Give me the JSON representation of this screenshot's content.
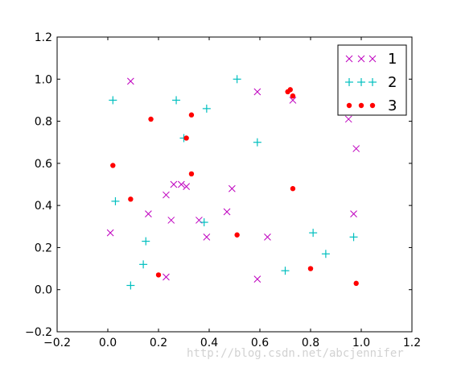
{
  "chart_data": {
    "type": "scatter",
    "title": "",
    "xlabel": "",
    "ylabel": "",
    "xlim": [
      -0.2,
      1.2
    ],
    "ylim": [
      -0.2,
      1.2
    ],
    "x_ticks": [
      "−0.2",
      "0.0",
      "0.2",
      "0.4",
      "0.6",
      "0.8",
      "1.0",
      "1.2"
    ],
    "y_ticks": [
      "−0.2",
      "0.0",
      "0.2",
      "0.4",
      "0.6",
      "0.8",
      "1.0",
      "1.2"
    ],
    "grid": false,
    "legend_position": "top-right",
    "series": [
      {
        "name": "1",
        "marker": "x",
        "color": "#bf00bf",
        "points": [
          [
            0.09,
            0.99
          ],
          [
            0.59,
            0.94
          ],
          [
            0.73,
            0.9
          ],
          [
            0.95,
            0.81
          ],
          [
            0.98,
            0.67
          ],
          [
            0.26,
            0.5
          ],
          [
            0.29,
            0.5
          ],
          [
            0.31,
            0.49
          ],
          [
            0.49,
            0.48
          ],
          [
            0.23,
            0.45
          ],
          [
            0.47,
            0.37
          ],
          [
            0.16,
            0.36
          ],
          [
            0.97,
            0.36
          ],
          [
            0.36,
            0.33
          ],
          [
            0.25,
            0.33
          ],
          [
            0.01,
            0.27
          ],
          [
            0.39,
            0.25
          ],
          [
            0.63,
            0.25
          ],
          [
            0.23,
            0.06
          ],
          [
            0.59,
            0.05
          ]
        ]
      },
      {
        "name": "2",
        "marker": "+",
        "color": "#00bfbf",
        "points": [
          [
            0.51,
            1.0
          ],
          [
            0.02,
            0.9
          ],
          [
            0.27,
            0.9
          ],
          [
            0.39,
            0.86
          ],
          [
            0.3,
            0.72
          ],
          [
            0.59,
            0.7
          ],
          [
            0.03,
            0.42
          ],
          [
            0.38,
            0.32
          ],
          [
            0.81,
            0.27
          ],
          [
            0.97,
            0.25
          ],
          [
            0.15,
            0.23
          ],
          [
            0.86,
            0.17
          ],
          [
            0.14,
            0.12
          ],
          [
            0.7,
            0.09
          ],
          [
            0.09,
            0.02
          ]
        ]
      },
      {
        "name": "3",
        "marker": "o",
        "color": "#ff0000",
        "points": [
          [
            0.71,
            0.94
          ],
          [
            0.72,
            0.95
          ],
          [
            0.73,
            0.92
          ],
          [
            0.33,
            0.83
          ],
          [
            0.17,
            0.81
          ],
          [
            0.31,
            0.72
          ],
          [
            0.02,
            0.59
          ],
          [
            0.33,
            0.55
          ],
          [
            0.73,
            0.48
          ],
          [
            0.09,
            0.43
          ],
          [
            0.51,
            0.26
          ],
          [
            0.8,
            0.1
          ],
          [
            0.2,
            0.07
          ],
          [
            0.98,
            0.03
          ]
        ]
      }
    ]
  },
  "watermark": "http://blog.csdn.net/abcjennifer"
}
